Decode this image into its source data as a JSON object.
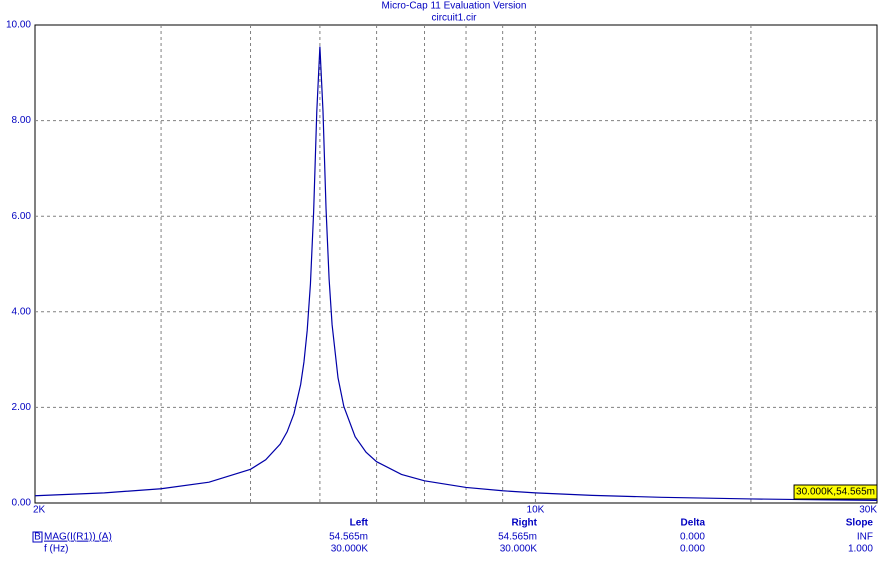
{
  "chart_data": {
    "type": "line",
    "title": "Micro-Cap 11 Evaluation Version",
    "subtitle": "circuit1.cir",
    "log_x": true,
    "grid": true,
    "x": [
      2000,
      2500,
      3000,
      3500,
      4000,
      4200,
      4400,
      4500,
      4600,
      4700,
      4750,
      4800,
      4850,
      4900,
      4950,
      5000,
      5050,
      5100,
      5150,
      5200,
      5300,
      5400,
      5600,
      5800,
      6000,
      6500,
      7000,
      8000,
      9000,
      10000,
      12000,
      15000,
      20000,
      25000,
      30000
    ],
    "series": [
      {
        "name": "MAG(I(R1)) (A)",
        "color": "#0000a8",
        "values": [
          0.152,
          0.212,
          0.298,
          0.436,
          0.705,
          0.904,
          1.231,
          1.49,
          1.869,
          2.48,
          2.95,
          3.61,
          4.58,
          6.08,
          8.18,
          9.55,
          8.2,
          6.15,
          4.69,
          3.73,
          2.62,
          2.02,
          1.387,
          1.062,
          0.864,
          0.598,
          0.464,
          0.326,
          0.256,
          0.212,
          0.16,
          0.119,
          0.0849,
          0.0663,
          0.054565
        ]
      }
    ],
    "xlim": [
      2000,
      30000
    ],
    "xticks": [
      {
        "value": 2000,
        "label": "2K"
      },
      {
        "value": 10000,
        "label": "10K"
      },
      {
        "value": 30000,
        "label": "30K"
      }
    ],
    "xminor": [
      3000,
      4000,
      5000,
      6000,
      7000,
      8000,
      9000,
      20000
    ],
    "ylim": [
      0,
      10
    ],
    "yticks": [
      {
        "value": 0,
        "label": "0.00"
      },
      {
        "value": 2,
        "label": "2.00"
      },
      {
        "value": 4,
        "label": "4.00"
      },
      {
        "value": 6,
        "label": "6.00"
      },
      {
        "value": 8,
        "label": "8.00"
      },
      {
        "value": 10,
        "label": "10.00"
      }
    ],
    "cursor_label": "30.000K,54.565m"
  },
  "readout": {
    "headers": [
      "Left",
      "Right",
      "Delta",
      "Slope"
    ],
    "rows": [
      {
        "marker": "B",
        "label": "MAG(I(R1)) (A)",
        "cells": [
          "54.565m",
          "54.565m",
          "0.000",
          "INF"
        ]
      },
      {
        "label": "f (Hz)",
        "cells": [
          "30.000K",
          "30.000K",
          "0.000",
          "1.000"
        ]
      }
    ]
  }
}
